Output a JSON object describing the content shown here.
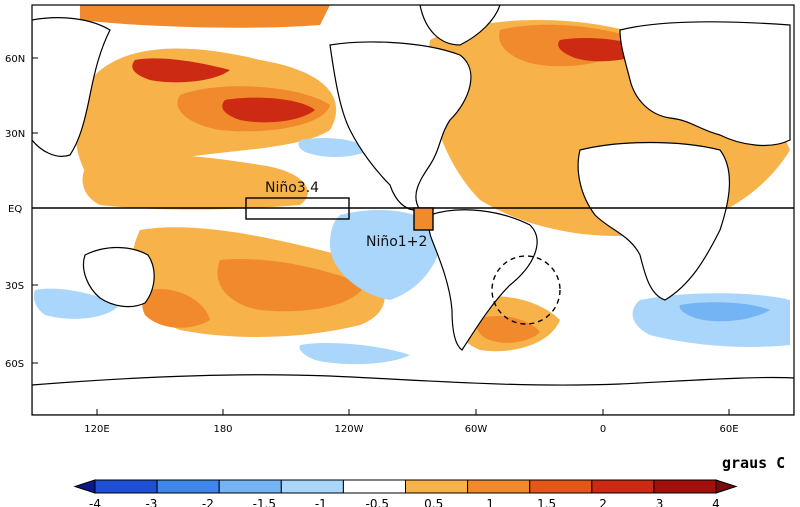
{
  "map": {
    "lat_labels": [
      "60N",
      "30N",
      "EQ",
      "30S",
      "60S"
    ],
    "lon_labels": [
      "120E",
      "180",
      "120W",
      "60W",
      "0",
      "60E"
    ],
    "regions": {
      "nino34": "Niño3.4",
      "nino12": "Niño1+2"
    }
  },
  "colorbar": {
    "units": "graus C",
    "labels": [
      "-4",
      "-3",
      "-2",
      "-1.5",
      "-1",
      "-0.5",
      "0.5",
      "1",
      "1.5",
      "2",
      "3",
      "4"
    ],
    "colors": [
      "#0a1a8c",
      "#1f4fd6",
      "#3f86ec",
      "#74b3f4",
      "#a9d6fa",
      "#ffffff",
      "#f7b24a",
      "#f08a2c",
      "#e5561a",
      "#cc2a12",
      "#a2100c",
      "#7a0a0a"
    ]
  }
}
